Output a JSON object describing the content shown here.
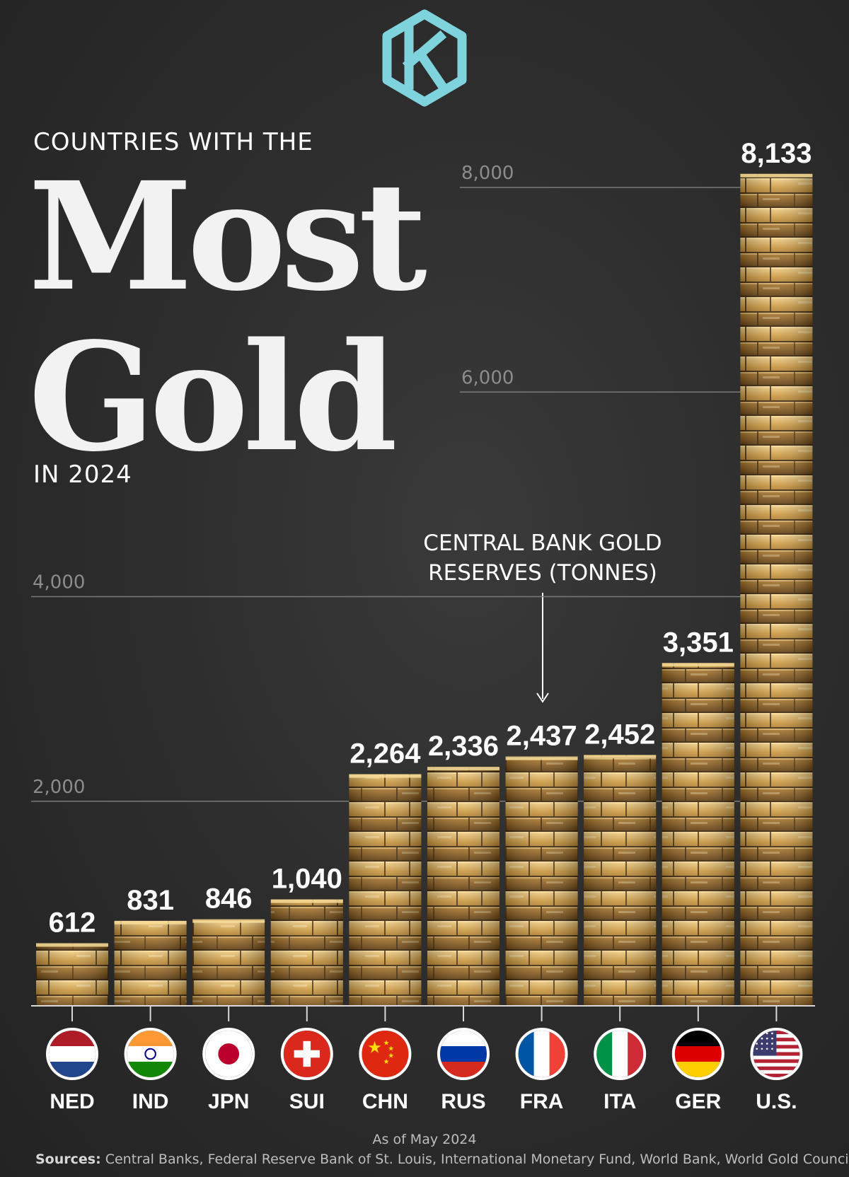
{
  "header": {
    "kicker": "COUNTRIES WITH THE",
    "title_line1": "Most",
    "title_line2": "Gold",
    "subtitle": "IN 2024"
  },
  "annotation": {
    "label_line1": "CENTRAL BANK GOLD",
    "label_line2": "RESERVES (TONNES)"
  },
  "footer": {
    "as_of": "As of May 2024",
    "sources_label": "Sources:",
    "sources_text": "Central Banks, Federal Reserve Bank of St. Louis, International Monetary Fund, World Bank, World Gold Council"
  },
  "colors": {
    "background": "#2e2e2e",
    "gold_light": "#e8c070",
    "gold_mid": "#b88a3a",
    "gold_dark": "#6e4a1a",
    "gridline": "#8a8a8a",
    "logo_teal": "#7fd3dc"
  },
  "icons": [
    "logo-k-hexagon-icon",
    "flag-nld-icon",
    "flag-ind-icon",
    "flag-jpn-icon",
    "flag-sui-icon",
    "flag-chn-icon",
    "flag-rus-icon",
    "flag-fra-icon",
    "flag-ita-icon",
    "flag-ger-icon",
    "flag-usa-icon"
  ],
  "chart_data": {
    "type": "bar",
    "title": "COUNTRIES WITH THE Most Gold IN 2024",
    "ylabel": "CENTRAL BANK GOLD RESERVES (TONNES)",
    "categories": [
      "NED",
      "IND",
      "JPN",
      "SUI",
      "CHN",
      "RUS",
      "FRA",
      "ITA",
      "GER",
      "U.S."
    ],
    "values": [
      612,
      831,
      846,
      1040,
      2264,
      2336,
      2437,
      2452,
      3351,
      8133
    ],
    "value_labels": [
      "612",
      "831",
      "846",
      "1,040",
      "2,264",
      "2,336",
      "2,437",
      "2,452",
      "3,351",
      "8,133"
    ],
    "yticks": [
      2000,
      4000,
      6000,
      8000
    ],
    "ytick_labels": [
      "2,000",
      "4,000",
      "6,000",
      "8,000"
    ],
    "ylim": [
      0,
      8133
    ],
    "grid": true,
    "legend": "none"
  }
}
